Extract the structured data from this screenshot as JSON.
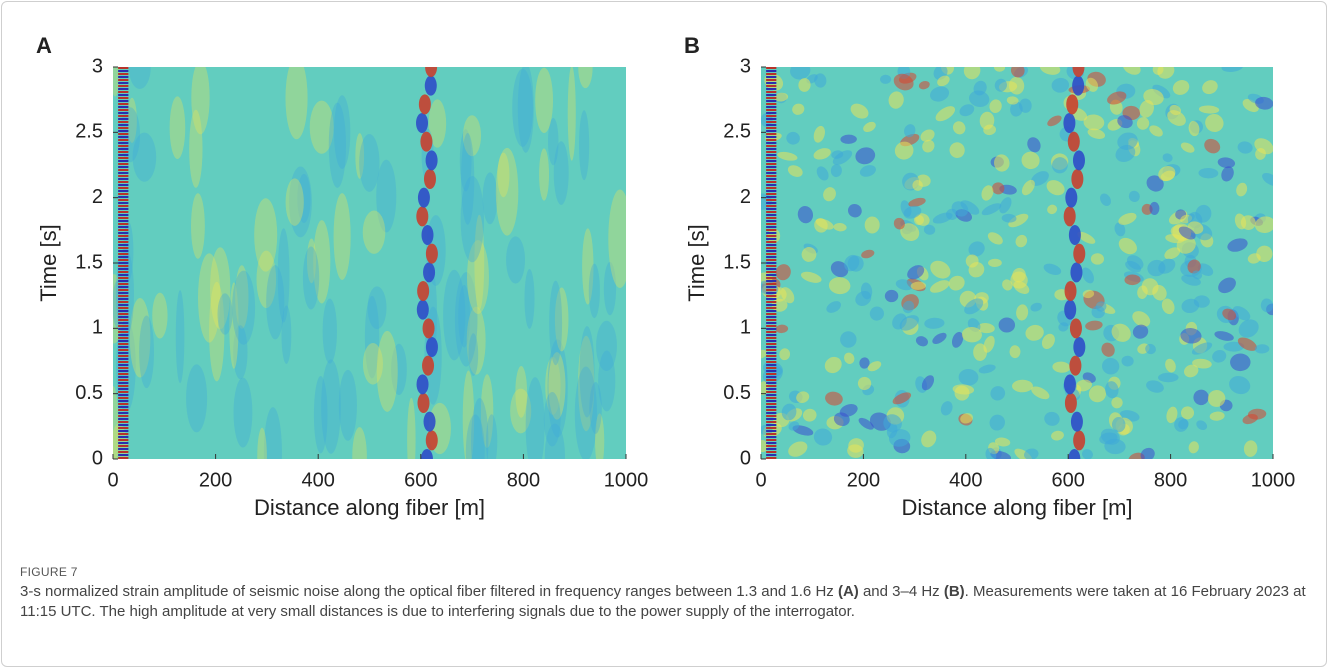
{
  "chart_data": [
    {
      "type": "heatmap",
      "panel": "A",
      "xlabel": "Distance along fiber [m]",
      "ylabel": "Time [s]",
      "xlim": [
        0,
        1000
      ],
      "ylim": [
        0,
        3
      ],
      "xticks": [
        0,
        200,
        400,
        600,
        800,
        1000
      ],
      "yticks": [
        0,
        0.5,
        1,
        1.5,
        2,
        2.5,
        3
      ]
    },
    {
      "type": "heatmap",
      "panel": "B",
      "xlabel": "Distance along fiber [m]",
      "ylabel": "Time [s]",
      "xlim": [
        0,
        1000
      ],
      "ylim": [
        0,
        3
      ],
      "xticks": [
        0,
        200,
        400,
        600,
        800,
        1000
      ],
      "yticks": [
        0,
        0.5,
        1,
        1.5,
        2,
        2.5,
        3
      ]
    }
  ],
  "figure": {
    "label": "FIGURE 7",
    "caption": [
      {
        "text": "3-s normalized strain amplitude of seismic noise along the optical fiber filtered in frequency ranges between 1.3 and 1.6 Hz ",
        "bold": false
      },
      {
        "text": "(A)",
        "bold": true
      },
      {
        "text": " and 3–4 Hz ",
        "bold": false
      },
      {
        "text": "(B)",
        "bold": true
      },
      {
        "text": ". Measurements were taken at 16 February 2023 at 11:15 UTC. The high amplitude at very small distances is due to interfering signals due to the power supply of the interrogator.",
        "bold": false
      }
    ]
  }
}
